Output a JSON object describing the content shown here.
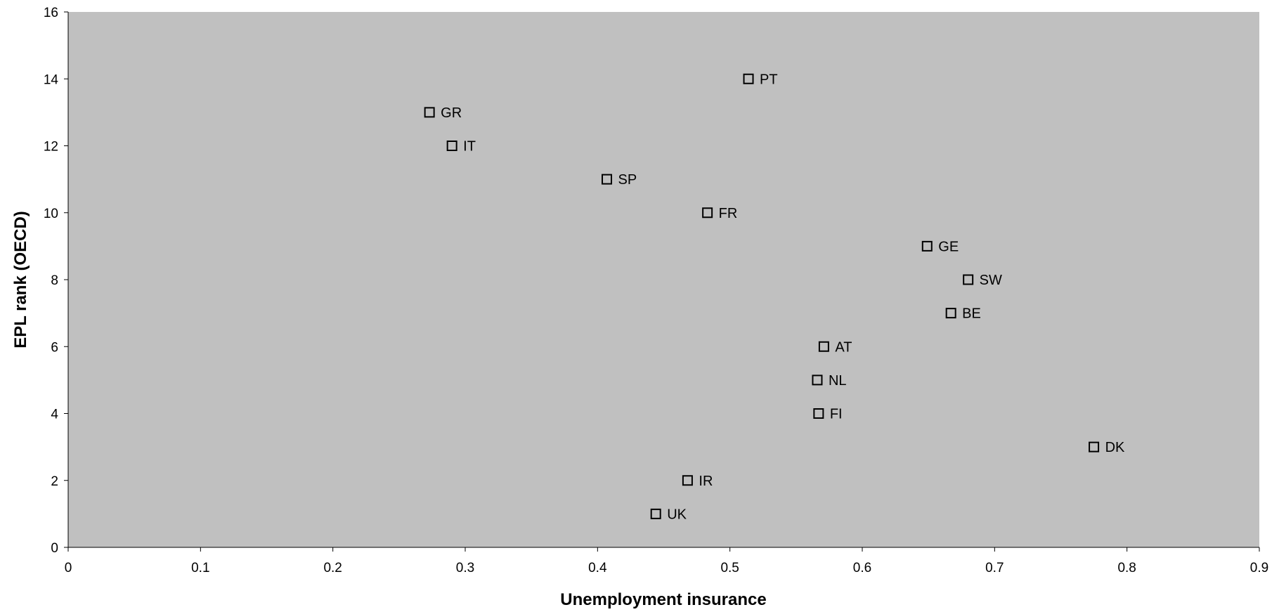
{
  "chart_data": {
    "type": "scatter",
    "title": "",
    "xlabel": "Unemployment insurance",
    "ylabel": "EPL rank (OECD)",
    "xlim": [
      0,
      0.9
    ],
    "ylim": [
      0,
      16
    ],
    "x_ticks": [
      0,
      0.1,
      0.2,
      0.3,
      0.4,
      0.5,
      0.6,
      0.7,
      0.8,
      0.9
    ],
    "x_tick_labels": [
      "0",
      "0.1",
      "0.2",
      "0.3",
      "0.4",
      "0.5",
      "0.6",
      "0.7",
      "0.8",
      "0.9"
    ],
    "y_ticks": [
      0,
      2,
      4,
      6,
      8,
      10,
      12,
      14,
      16
    ],
    "y_tick_labels": [
      "0",
      "2",
      "4",
      "6",
      "8",
      "10",
      "12",
      "14",
      "16"
    ],
    "grid": false,
    "legend": "none",
    "plot_background": "#c0c0c0",
    "marker": "hollow-square",
    "marker_color": "#000000",
    "points": [
      {
        "label": "PT",
        "x": 0.514,
        "y": 14
      },
      {
        "label": "GR",
        "x": 0.273,
        "y": 13
      },
      {
        "label": "IT",
        "x": 0.29,
        "y": 12
      },
      {
        "label": "SP",
        "x": 0.407,
        "y": 11
      },
      {
        "label": "FR",
        "x": 0.483,
        "y": 10
      },
      {
        "label": "GE",
        "x": 0.649,
        "y": 9
      },
      {
        "label": "SW",
        "x": 0.68,
        "y": 8
      },
      {
        "label": "BE",
        "x": 0.667,
        "y": 7
      },
      {
        "label": "AT",
        "x": 0.571,
        "y": 6
      },
      {
        "label": "NL",
        "x": 0.566,
        "y": 5
      },
      {
        "label": "FI",
        "x": 0.567,
        "y": 4
      },
      {
        "label": "DK",
        "x": 0.775,
        "y": 3
      },
      {
        "label": "IR",
        "x": 0.468,
        "y": 2
      },
      {
        "label": "UK",
        "x": 0.444,
        "y": 1
      }
    ]
  }
}
